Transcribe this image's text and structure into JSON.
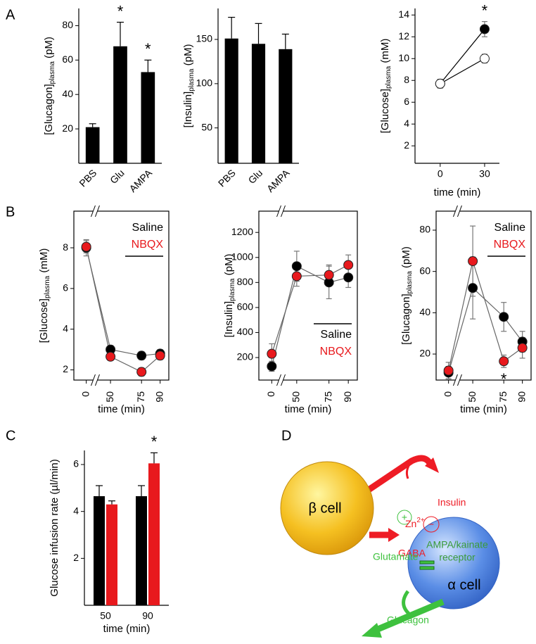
{
  "panels": [
    "A",
    "B",
    "C",
    "D"
  ],
  "chart_data": [
    {
      "type": "bar",
      "ylabel": [
        "[Glucagon]",
        "plasma",
        " (pM)"
      ],
      "categories": [
        "PBS",
        "Glu",
        "AMPA"
      ],
      "values": [
        21,
        68,
        53
      ],
      "errors": [
        2,
        14,
        7
      ],
      "color": "#000000",
      "ylim": [
        0,
        90
      ],
      "yticks": [
        20,
        40,
        60,
        80
      ],
      "annotations": [
        {
          "text": "*",
          "x": "Glu"
        },
        {
          "text": "*",
          "x": "AMPA"
        }
      ]
    },
    {
      "type": "bar",
      "ylabel": [
        "[Insulin]",
        "plasma",
        " (pM)"
      ],
      "categories": [
        "PBS",
        "Glu",
        "AMPA"
      ],
      "values": [
        151,
        145,
        139
      ],
      "errors": [
        24,
        23,
        17
      ],
      "color": "#000000",
      "ylim": [
        10,
        185
      ],
      "yticks": [
        50,
        100,
        150
      ]
    },
    {
      "type": "line",
      "ylabel": [
        "[Glucose]",
        "plasma",
        " (mM)"
      ],
      "xlabel": "time (min)",
      "x": [
        0,
        30
      ],
      "xlim": [
        -17,
        40
      ],
      "xticks": [
        0,
        30
      ],
      "ylim": [
        0.4,
        14.6
      ],
      "yticks": [
        2,
        4,
        6,
        8,
        10,
        12,
        14
      ],
      "line_color": "#000000",
      "series": [
        {
          "color": "#000000",
          "values": [
            7.7,
            12.7
          ],
          "errors": [
            0.4,
            0.7
          ]
        },
        {
          "color": "#ffffff",
          "values": [
            7.7,
            10.0
          ],
          "errors": [
            0.4,
            0.4
          ]
        }
      ],
      "annotations": [
        {
          "text": "*",
          "x": 30
        }
      ]
    },
    {
      "type": "line",
      "ylabel": [
        "[Glucose]",
        "plasma",
        " (mM)"
      ],
      "xlabel": "time (min)",
      "x": [
        0,
        50,
        75,
        90
      ],
      "xlim": [
        -10,
        97
      ],
      "xbreak": [
        5,
        40
      ],
      "xticks": [
        0,
        50,
        75,
        90
      ],
      "ylim": [
        1.5,
        9.8
      ],
      "yticks": [
        2,
        4,
        6,
        8
      ],
      "line_color": "#666666",
      "legend": "upper right",
      "series": [
        {
          "name": "Saline",
          "color": "#000000",
          "values": [
            8.0,
            3.0,
            2.7,
            2.8
          ],
          "errors": [
            0.4,
            0.2,
            0.2,
            0.2
          ]
        },
        {
          "name": "NBQX",
          "color": "#e8191d",
          "values": [
            8.05,
            2.65,
            1.9,
            2.7
          ],
          "errors": [
            0.3,
            0.15,
            0.2,
            0.2
          ]
        }
      ]
    },
    {
      "type": "line",
      "ylabel": [
        "[Insulin]",
        "plasma",
        " (pM)"
      ],
      "xlabel": "time (min)",
      "x": [
        0,
        50,
        75,
        90
      ],
      "xlim": [
        -10,
        97
      ],
      "xbreak": [
        5,
        40
      ],
      "xticks": [
        0,
        50,
        75,
        90
      ],
      "ylim": [
        20,
        1370
      ],
      "yticks": [
        200,
        400,
        600,
        800,
        1000,
        1200
      ],
      "line_color": "#666666",
      "legend": "lower right",
      "series": [
        {
          "name": "Saline",
          "color": "#000000",
          "values": [
            130,
            930,
            800,
            840
          ],
          "errors": [
            40,
            120,
            130,
            80
          ]
        },
        {
          "name": "NBQX",
          "color": "#e8191d",
          "values": [
            230,
            850,
            860,
            940
          ],
          "errors": [
            80,
            80,
            80,
            80
          ]
        }
      ]
    },
    {
      "type": "line",
      "ylabel": [
        "[Glucagon]",
        "plasma",
        " (pM)"
      ],
      "xlabel": "time (min)",
      "x": [
        0,
        50,
        75,
        90
      ],
      "xlim": [
        -10,
        97
      ],
      "xbreak": [
        5,
        40
      ],
      "xticks": [
        0,
        50,
        75,
        90
      ],
      "ylim": [
        7.4,
        89.2
      ],
      "yticks": [
        20,
        40,
        60,
        80
      ],
      "line_color": "#666666",
      "legend": "upper right",
      "series": [
        {
          "name": "Saline",
          "color": "#000000",
          "values": [
            11,
            52,
            38,
            26
          ],
          "errors": [
            3,
            15,
            7,
            5
          ]
        },
        {
          "name": "NBQX",
          "color": "#e8191d",
          "values": [
            12,
            65,
            16.5,
            23
          ],
          "errors": [
            4,
            17,
            3,
            5
          ]
        }
      ],
      "annotations": [
        {
          "text": "*",
          "x": 75,
          "side": "below"
        }
      ]
    },
    {
      "type": "bar",
      "ylabel": [
        "Glucose infusion rate (µl/min)"
      ],
      "xlabel": "time (min)",
      "categories": [
        "50",
        "90"
      ],
      "ylim": [
        0,
        6.6
      ],
      "yticks": [
        2,
        4,
        6
      ],
      "series": [
        {
          "color": "#000000",
          "values": [
            4.65,
            4.65
          ],
          "errors": [
            0.45,
            0.45
          ]
        },
        {
          "color": "#e8191d",
          "values": [
            4.3,
            6.05
          ],
          "errors": [
            0.15,
            0.45
          ]
        }
      ],
      "annotations": [
        {
          "text": "*",
          "x": "90"
        }
      ]
    }
  ],
  "diagram": {
    "beta_cell": "β cell",
    "alpha_cell": "α cell",
    "receptor": [
      "AMPA/kainate",
      "receptor"
    ],
    "insulin": "Insulin",
    "zinc": [
      "Zn",
      "2+"
    ],
    "minus": "−",
    "gaba": "GABA",
    "plus": "+",
    "glutamate": "Glutamate",
    "glucagon": "Glucagon"
  }
}
